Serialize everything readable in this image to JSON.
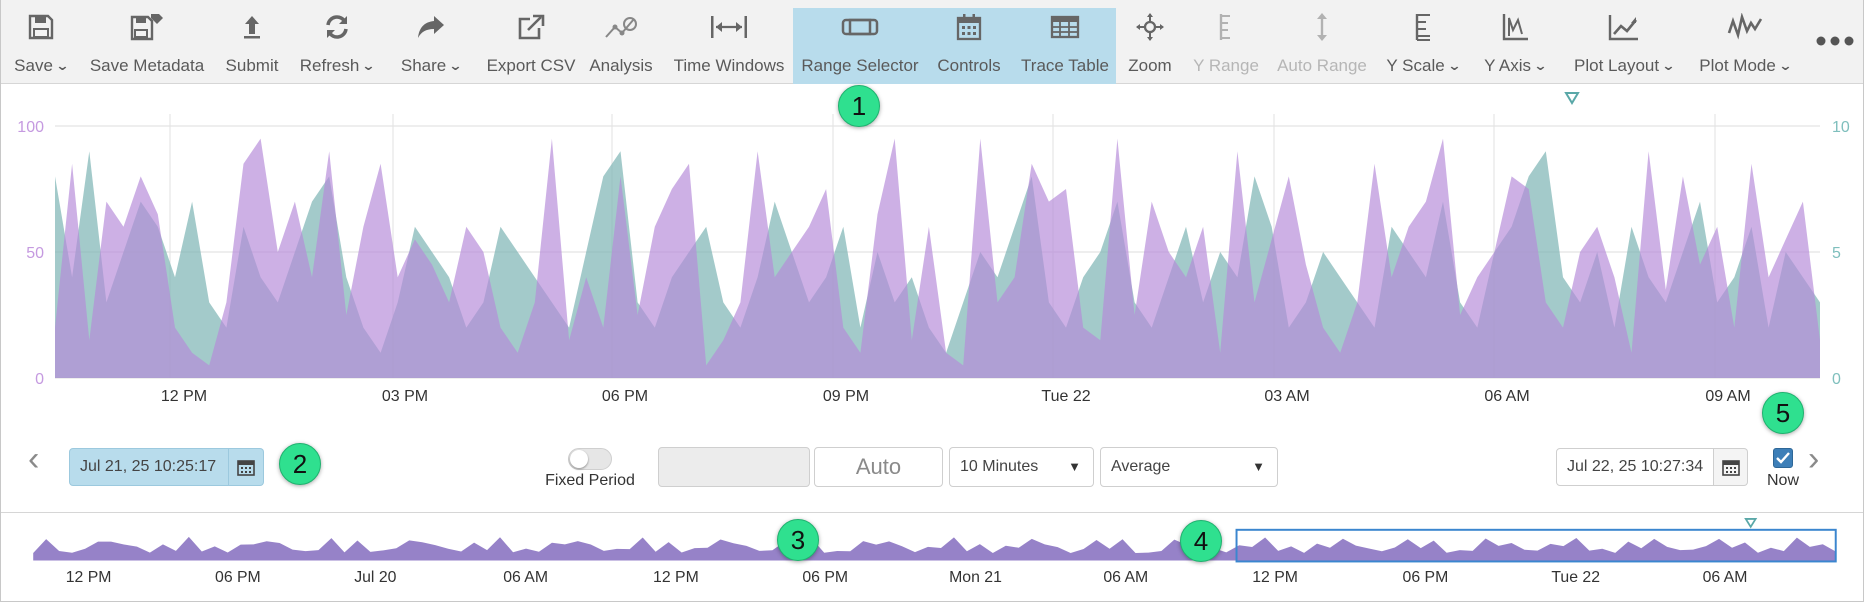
{
  "toolbar": {
    "items": [
      {
        "label": "Save",
        "icon": "floppy-icon",
        "dropdown": true,
        "disabled": false
      },
      {
        "label": "Save Metadata",
        "icon": "floppy-tag-icon",
        "dropdown": false,
        "disabled": false
      },
      {
        "label": "Submit",
        "icon": "upload-arrow-icon",
        "dropdown": false,
        "disabled": false
      },
      {
        "label": "Refresh",
        "icon": "refresh-icon",
        "dropdown": true,
        "disabled": false
      },
      {
        "label": "Share",
        "icon": "share-arrow-icon",
        "dropdown": true,
        "disabled": false
      },
      {
        "label": "Export CSV",
        "icon": "export-icon",
        "dropdown": false,
        "disabled": false
      },
      {
        "label": "Analysis",
        "icon": "analysis-icon",
        "dropdown": false,
        "disabled": false
      },
      {
        "label": "Time Windows",
        "icon": "time-windows-icon",
        "dropdown": false,
        "disabled": false
      },
      {
        "label": "Range Selector",
        "icon": "range-selector-icon",
        "dropdown": false,
        "disabled": false,
        "active": true
      },
      {
        "label": "Controls",
        "icon": "calendar-icon",
        "dropdown": false,
        "disabled": false,
        "active": true
      },
      {
        "label": "Trace Table",
        "icon": "table-icon",
        "dropdown": false,
        "disabled": false,
        "active": true
      },
      {
        "label": "Zoom",
        "icon": "zoom-move-icon",
        "dropdown": false,
        "disabled": false
      },
      {
        "label": "Y Range",
        "icon": "y-range-icon",
        "dropdown": false,
        "disabled": true
      },
      {
        "label": "Auto Range",
        "icon": "auto-range-icon",
        "dropdown": false,
        "disabled": true
      },
      {
        "label": "Y Scale",
        "icon": "y-scale-icon",
        "dropdown": true,
        "disabled": false
      },
      {
        "label": "Y Axis",
        "icon": "y-axis-icon",
        "dropdown": true,
        "disabled": false
      },
      {
        "label": "Plot Layout",
        "icon": "plot-layout-icon",
        "dropdown": true,
        "disabled": false
      },
      {
        "label": "Plot Mode",
        "icon": "plot-mode-icon",
        "dropdown": true,
        "disabled": false
      }
    ],
    "more_icon": "more-dots-icon",
    "active_color": "#b8dcec"
  },
  "chart_data": {
    "type": "area",
    "series": [
      {
        "name": "",
        "color": "#b58ad8",
        "axis": "left",
        "values": [
          20,
          85,
          15,
          70,
          60,
          80,
          65,
          20,
          10,
          5,
          30,
          85,
          95,
          50,
          70,
          40,
          90,
          25,
          60,
          85,
          40,
          55,
          45,
          30,
          60,
          50,
          20,
          10,
          30,
          95,
          15,
          40,
          20,
          80,
          25,
          60,
          75,
          85,
          5,
          15,
          30,
          90,
          40,
          50,
          60,
          75,
          20,
          10,
          65,
          95,
          15,
          60,
          10,
          5,
          95,
          30,
          40,
          85,
          70,
          75,
          20,
          15,
          95,
          25,
          70,
          50,
          40,
          60,
          10,
          90,
          30,
          55,
          80,
          45,
          20,
          10,
          30,
          85,
          40,
          60,
          70,
          95,
          25,
          40,
          50,
          80,
          75,
          30,
          20,
          50,
          60,
          40,
          10,
          90,
          35,
          80,
          45,
          60,
          20,
          85,
          40,
          55,
          70,
          15
        ]
      },
      {
        "name": "",
        "color": "#7fb5b5",
        "axis": "right",
        "values": [
          8,
          4,
          9,
          3,
          5,
          7,
          6,
          4,
          7,
          3,
          2,
          6,
          4,
          3,
          5,
          7,
          8,
          4,
          2,
          1,
          3,
          6,
          5,
          4,
          2,
          3,
          6,
          5,
          4,
          3,
          2,
          5,
          8,
          9,
          3,
          2,
          4,
          5,
          6,
          3,
          2,
          4,
          7,
          5,
          3,
          4,
          6,
          2,
          5,
          3,
          4,
          2,
          1,
          3,
          5,
          4,
          6,
          8,
          3,
          2,
          4,
          5,
          7,
          3,
          2,
          4,
          6,
          3,
          5,
          4,
          8,
          6,
          2,
          3,
          5,
          4,
          3,
          2,
          6,
          5,
          4,
          7,
          3,
          2,
          5,
          6,
          8,
          9,
          4,
          3,
          5,
          2,
          6,
          4,
          3,
          5,
          7,
          3,
          4,
          6,
          2,
          5,
          4,
          3
        ]
      }
    ],
    "x_ticks": [
      "12 PM",
      "03 PM",
      "06 PM",
      "09 PM",
      "Tue 22",
      "03 AM",
      "06 AM",
      "09 AM"
    ],
    "y_left_ticks": [
      "0",
      "50",
      "100"
    ],
    "y_right_ticks": [
      "0",
      "5",
      "10"
    ],
    "y_left_range": [
      0,
      100
    ],
    "y_right_range": [
      0,
      10
    ],
    "grid": true
  },
  "controls": {
    "start_date": "Jul 21, 25 10:25:17",
    "end_date": "Jul 22, 25 10:27:34",
    "fixed_period_label": "Fixed Period",
    "fixed_period_on": false,
    "period_value": "",
    "auto_label": "Auto",
    "interval_select": "10 Minutes",
    "aggregation_select": "Average",
    "now_label": "Now",
    "now_checked": true
  },
  "navigator": {
    "x_ticks": [
      "12 PM",
      "06 PM",
      "Jul 20",
      "06 AM",
      "12 PM",
      "06 PM",
      "Mon 21",
      "06 AM",
      "12 PM",
      "06 PM",
      "Tue 22",
      "06 AM"
    ],
    "selection_color": "#3b86cf",
    "area_color": "#9682c8"
  },
  "callouts": [
    "1",
    "2",
    "3",
    "4",
    "5"
  ]
}
